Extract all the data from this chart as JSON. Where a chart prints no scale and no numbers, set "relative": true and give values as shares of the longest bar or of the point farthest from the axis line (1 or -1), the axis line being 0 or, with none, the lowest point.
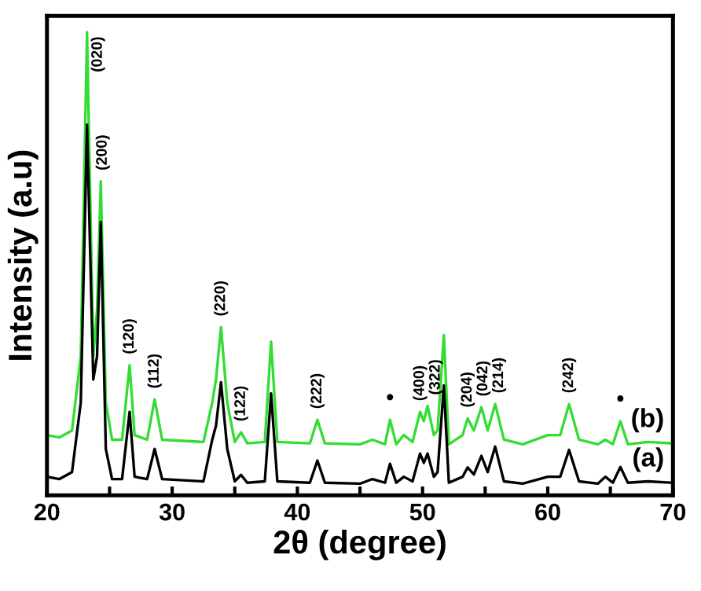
{
  "chart_data": {
    "type": "line",
    "xlabel": "2θ (degree)",
    "ylabel": "Intensity (a.u)",
    "relative": true,
    "xlim": [
      20,
      70
    ],
    "xticks": [
      20,
      {
        "value": 25,
        "label": null
      },
      30,
      {
        "value": 35,
        "label": null
      },
      40,
      {
        "value": 45,
        "label": null
      },
      50,
      {
        "value": 55,
        "label": null
      },
      60,
      {
        "value": 65,
        "label": null
      },
      70
    ],
    "legend": false,
    "grid": false,
    "marker": "none",
    "line_style": "solid",
    "x": [
      20,
      21,
      22,
      22.7,
      23.2,
      23.7,
      24.0,
      24.3,
      24.7,
      25.2,
      26.0,
      26.6,
      27.0,
      28.0,
      28.6,
      29.2,
      32.5,
      33.2,
      33.5,
      33.9,
      34.4,
      35.0,
      35.5,
      36.0,
      37.4,
      37.9,
      38.4,
      41.0,
      41.6,
      42.2,
      45,
      46,
      47.0,
      47.4,
      47.9,
      48.5,
      49.2,
      49.8,
      50.1,
      50.4,
      50.9,
      51.2,
      51.7,
      52.1,
      53.2,
      53.6,
      54.1,
      54.7,
      55.2,
      55.8,
      56.5,
      58,
      60,
      61.0,
      61.7,
      62.5,
      64.0,
      64.6,
      65.2,
      65.8,
      66.4,
      68,
      70
    ],
    "series": [
      {
        "name": "(b)",
        "color": "#33dd33",
        "values": [
          0.13,
          0.125,
          0.14,
          0.3,
          1.0,
          0.3,
          0.4,
          0.678,
          0.2,
          0.12,
          0.12,
          0.281,
          0.13,
          0.12,
          0.207,
          0.12,
          0.115,
          0.2,
          0.25,
          0.363,
          0.2,
          0.115,
          0.136,
          0.112,
          0.115,
          0.332,
          0.115,
          0.112,
          0.163,
          0.112,
          0.11,
          0.12,
          0.11,
          0.163,
          0.11,
          0.13,
          0.115,
          0.18,
          0.16,
          0.193,
          0.13,
          0.14,
          0.346,
          0.11,
          0.13,
          0.166,
          0.14,
          0.19,
          0.14,
          0.197,
          0.12,
          0.11,
          0.13,
          0.13,
          0.197,
          0.12,
          0.11,
          0.12,
          0.11,
          0.16,
          0.11,
          0.115,
          0.112
        ]
      },
      {
        "name": "(a)",
        "color": "#000000",
        "values": [
          0.04,
          0.035,
          0.05,
          0.2,
          0.8,
          0.25,
          0.3,
          0.59,
          0.1,
          0.035,
          0.035,
          0.18,
          0.04,
          0.035,
          0.1,
          0.035,
          0.03,
          0.12,
          0.15,
          0.244,
          0.1,
          0.03,
          0.044,
          0.027,
          0.03,
          0.22,
          0.03,
          0.027,
          0.075,
          0.027,
          0.025,
          0.035,
          0.027,
          0.068,
          0.027,
          0.04,
          0.03,
          0.09,
          0.07,
          0.09,
          0.04,
          0.05,
          0.237,
          0.027,
          0.04,
          0.06,
          0.045,
          0.085,
          0.05,
          0.105,
          0.03,
          0.025,
          0.04,
          0.04,
          0.098,
          0.03,
          0.025,
          0.04,
          0.027,
          0.061,
          0.027,
          0.03,
          0.027
        ]
      }
    ],
    "annotations": [
      {
        "text": "(020)",
        "x": 23.2,
        "y": 1.0
      },
      {
        "text": "(200)",
        "x": 24.3,
        "y": 0.678
      },
      {
        "text": "(120)",
        "x": 26.6,
        "y": 0.281
      },
      {
        "text": "(112)",
        "x": 28.6,
        "y": 0.207
      },
      {
        "text": "(220)",
        "x": 33.9,
        "y": 0.363
      },
      {
        "text": "(122)",
        "x": 35.5,
        "y": 0.136
      },
      {
        "text": "(222)",
        "x": 41.6,
        "y": 0.163
      },
      {
        "text": "•",
        "x": 47.4,
        "y": 0.163
      },
      {
        "text": "(400)",
        "x": 49.8,
        "y": 0.18
      },
      {
        "text": "(322)",
        "x": 50.4,
        "y": 0.193
      },
      {
        "text": "(204)",
        "x": 53.6,
        "y": 0.166
      },
      {
        "text": "(042)",
        "x": 54.7,
        "y": 0.19
      },
      {
        "text": "(214)",
        "x": 55.8,
        "y": 0.197
      },
      {
        "text": "(242)",
        "x": 61.7,
        "y": 0.197
      },
      {
        "text": "•",
        "x": 65.8,
        "y": 0.16
      }
    ]
  }
}
